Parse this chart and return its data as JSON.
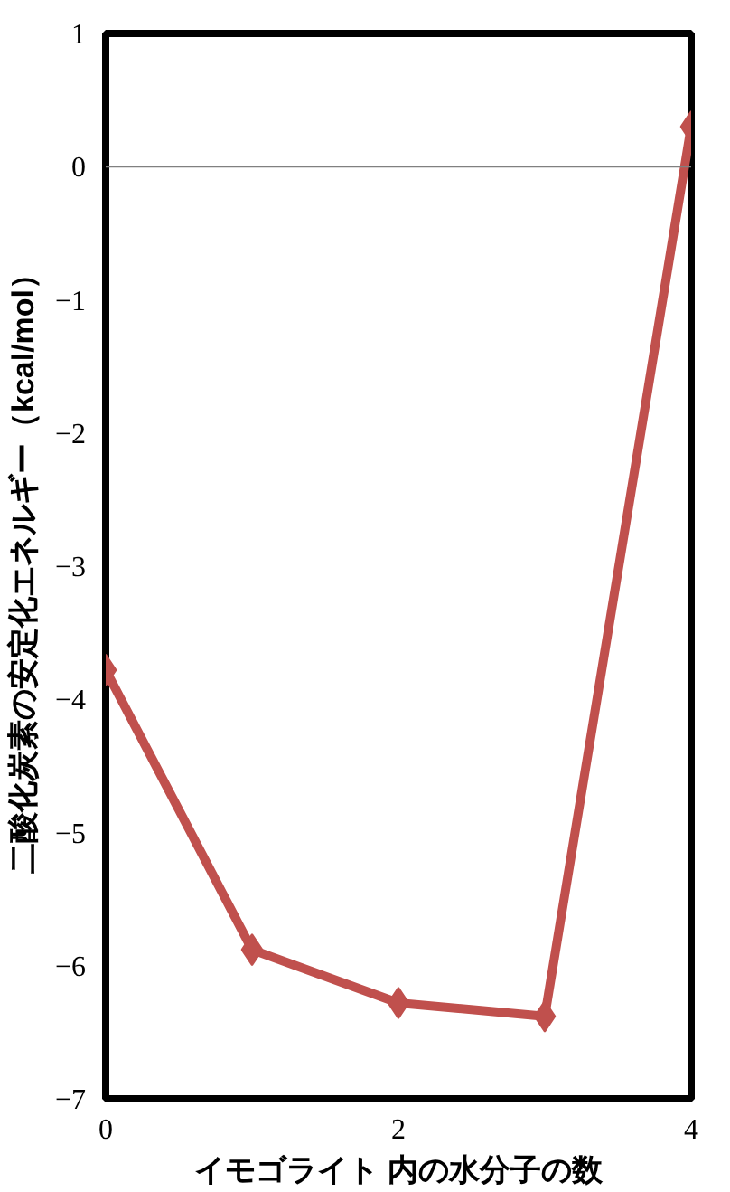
{
  "chart_data": {
    "type": "line",
    "xlabel": "イモゴライト 内の水分子の数",
    "ylabel": "二酸化炭素の安定化エネルギー（kcal/mol）",
    "x": [
      0,
      1,
      2,
      3,
      4
    ],
    "series": [
      {
        "color": "#c0504d",
        "values": [
          -3.78,
          -5.88,
          -6.28,
          -6.38,
          0.3
        ]
      }
    ],
    "xlim": [
      0,
      4
    ],
    "ylim": [
      -7,
      1
    ],
    "xticks": [
      0,
      2,
      4
    ],
    "yticks": [
      -7,
      -6,
      -5,
      -4,
      -3,
      -2,
      -1,
      0,
      1
    ],
    "ref_lines": [
      {
        "axis": "y",
        "value": 0,
        "color": "#808080"
      }
    ],
    "marker": "diamond",
    "line_style": "solid",
    "grid": false
  }
}
